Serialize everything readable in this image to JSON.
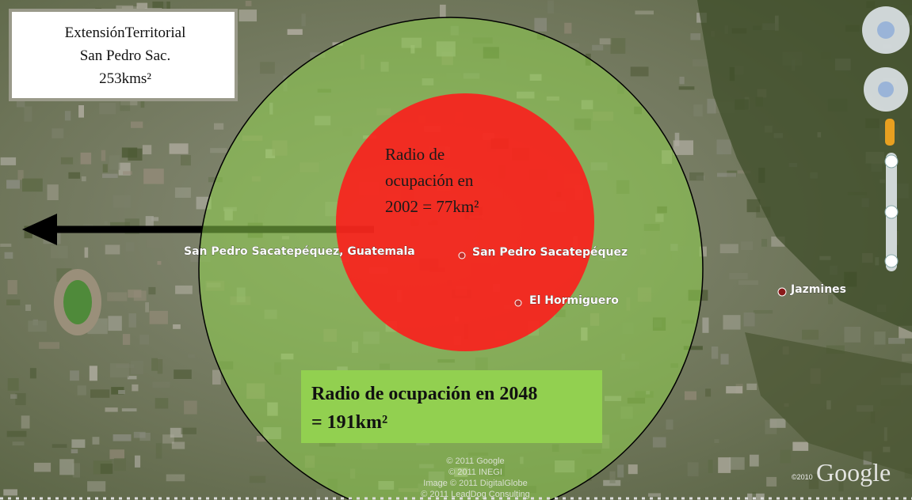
{
  "info_box": {
    "lines": [
      "ExtensiónTerritorial",
      "San Pedro Sac.",
      "253kms²"
    ]
  },
  "red_circle": {
    "lines": [
      "Radio de",
      "ocupación en",
      "2002 = 77km²"
    ]
  },
  "green_box": {
    "lines": [
      "Radio de ocupación en 2048",
      "= 191km²"
    ]
  },
  "map_labels": [
    "San Pedro Sacatepéquez, Guatemala",
    "San Pedro Sacatepéquez",
    "El Hormiguero",
    "Jazmines"
  ],
  "attribution": [
    "© 2011 Google",
    "© 2011 INEGI",
    "Image © 2011 DigitalGlobe",
    "© 2011 LeadDog Consulting"
  ],
  "logo": {
    "year": "©2010",
    "brand": "Google"
  }
}
